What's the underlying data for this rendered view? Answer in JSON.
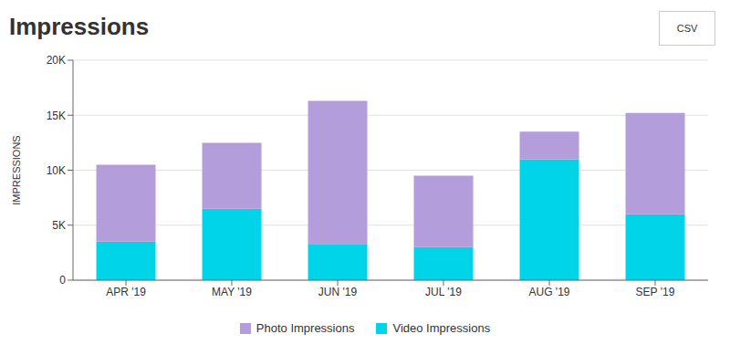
{
  "chart_data": {
    "type": "bar",
    "title": "Impressions",
    "ylabel": "IMPRESSIONS",
    "annotations": [
      "CSV"
    ],
    "categories": [
      "APR '19",
      "MAY '19",
      "JUN '19",
      "JUL '19",
      "AUG '19",
      "SEP '19"
    ],
    "series": [
      {
        "name": "Photo Impressions",
        "color": "#b39ddb",
        "values": [
          7000,
          6000,
          13000,
          6500,
          2500,
          9200
        ]
      },
      {
        "name": "Video Impressions",
        "color": "#00d4e8",
        "values": [
          3500,
          6500,
          3300,
          3000,
          11000,
          6000
        ]
      }
    ],
    "stacked": true,
    "ylim": [
      0,
      20000
    ],
    "yticks": [
      0,
      {
        "value": 5000,
        "label": "5K"
      },
      {
        "value": 10000,
        "label": "10K"
      },
      {
        "value": 15000,
        "label": "15K"
      },
      {
        "value": 20000,
        "label": "20K"
      }
    ],
    "grid": true
  }
}
